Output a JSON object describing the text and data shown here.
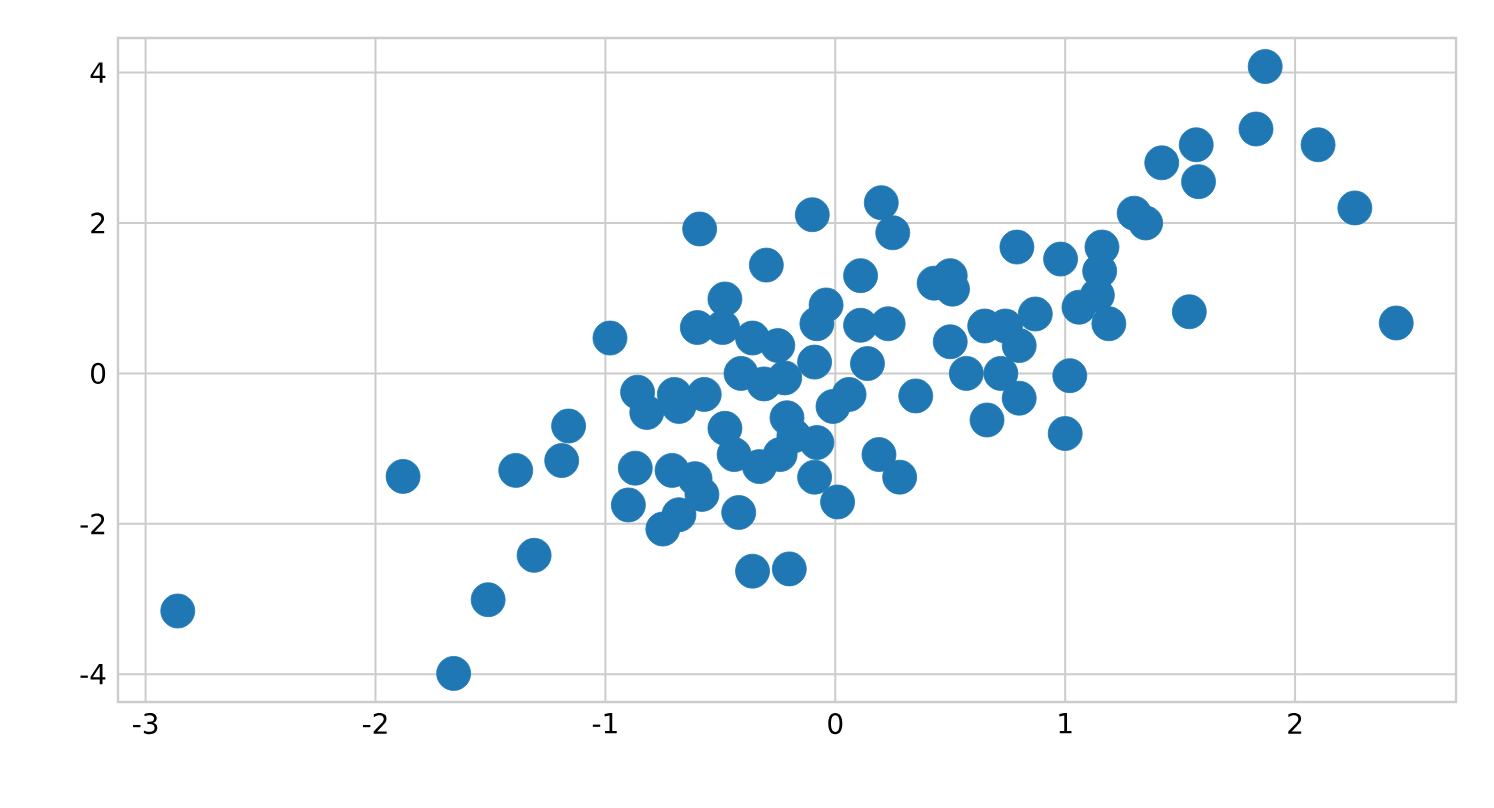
{
  "chart_data": {
    "type": "scatter",
    "color": "#1f77b4",
    "marker": "circle",
    "grid": true,
    "xlim": [
      -3.12,
      2.7
    ],
    "ylim": [
      -4.37,
      4.46
    ],
    "xticks": [
      -3,
      -2,
      -1,
      0,
      1,
      2
    ],
    "yticks": [
      -4,
      -2,
      0,
      2,
      4
    ],
    "x": [
      -2.86,
      -1.88,
      -1.66,
      -1.51,
      -1.39,
      -1.31,
      -1.19,
      -1.16,
      -0.98,
      -0.59,
      -0.3,
      -0.1,
      0.2,
      0.25,
      0.11,
      -0.48,
      -0.6,
      -0.49,
      -0.36,
      -0.25,
      -0.41,
      -0.31,
      -0.22,
      -0.09,
      -0.08,
      -0.04,
      0.11,
      0.23,
      0.14,
      0.06,
      -0.01,
      0.35,
      0.19,
      0.28,
      0.01,
      -0.09,
      -0.08,
      -0.21,
      -0.18,
      -0.24,
      -0.33,
      -0.44,
      -0.48,
      -0.42,
      -0.36,
      -0.2,
      -0.86,
      -0.82,
      -0.7,
      -0.68,
      -0.57,
      -0.87,
      -0.9,
      -0.71,
      -0.61,
      -0.58,
      -0.68,
      -0.75,
      0.5,
      0.43,
      0.51,
      0.5,
      0.65,
      0.74,
      0.8,
      0.57,
      0.72,
      0.8,
      0.66,
      0.79,
      0.87,
      0.98,
      1.16,
      1.15,
      1.14,
      1.06,
      1.19,
      1.02,
      1.0,
      1.3,
      1.35,
      1.42,
      1.57,
      1.58,
      1.83,
      1.87,
      2.1,
      2.26,
      2.44,
      1.54
    ],
    "values": [
      -3.16,
      -1.37,
      -3.99,
      -3.01,
      -1.29,
      -2.42,
      -1.16,
      -0.7,
      0.47,
      1.92,
      1.44,
      2.11,
      2.27,
      1.87,
      1.3,
      0.99,
      0.61,
      0.61,
      0.47,
      0.37,
      0.0,
      -0.14,
      -0.06,
      0.15,
      0.66,
      0.91,
      0.64,
      0.66,
      0.13,
      -0.28,
      -0.44,
      -0.3,
      -1.08,
      -1.38,
      -1.71,
      -1.38,
      -0.92,
      -0.59,
      -0.83,
      -1.08,
      -1.24,
      -1.08,
      -0.73,
      -1.85,
      -2.63,
      -2.6,
      -0.25,
      -0.52,
      -0.28,
      -0.44,
      -0.28,
      -1.26,
      -1.75,
      -1.29,
      -1.4,
      -1.61,
      -1.88,
      -2.07,
      1.3,
      1.2,
      1.12,
      0.42,
      0.63,
      0.63,
      0.37,
      0.0,
      0.0,
      -0.33,
      -0.62,
      1.68,
      0.79,
      1.52,
      1.68,
      1.36,
      1.04,
      0.88,
      0.66,
      -0.03,
      -0.8,
      2.13,
      2.0,
      2.8,
      3.04,
      2.55,
      3.25,
      4.08,
      3.04,
      2.2,
      0.67,
      0.82
    ]
  }
}
